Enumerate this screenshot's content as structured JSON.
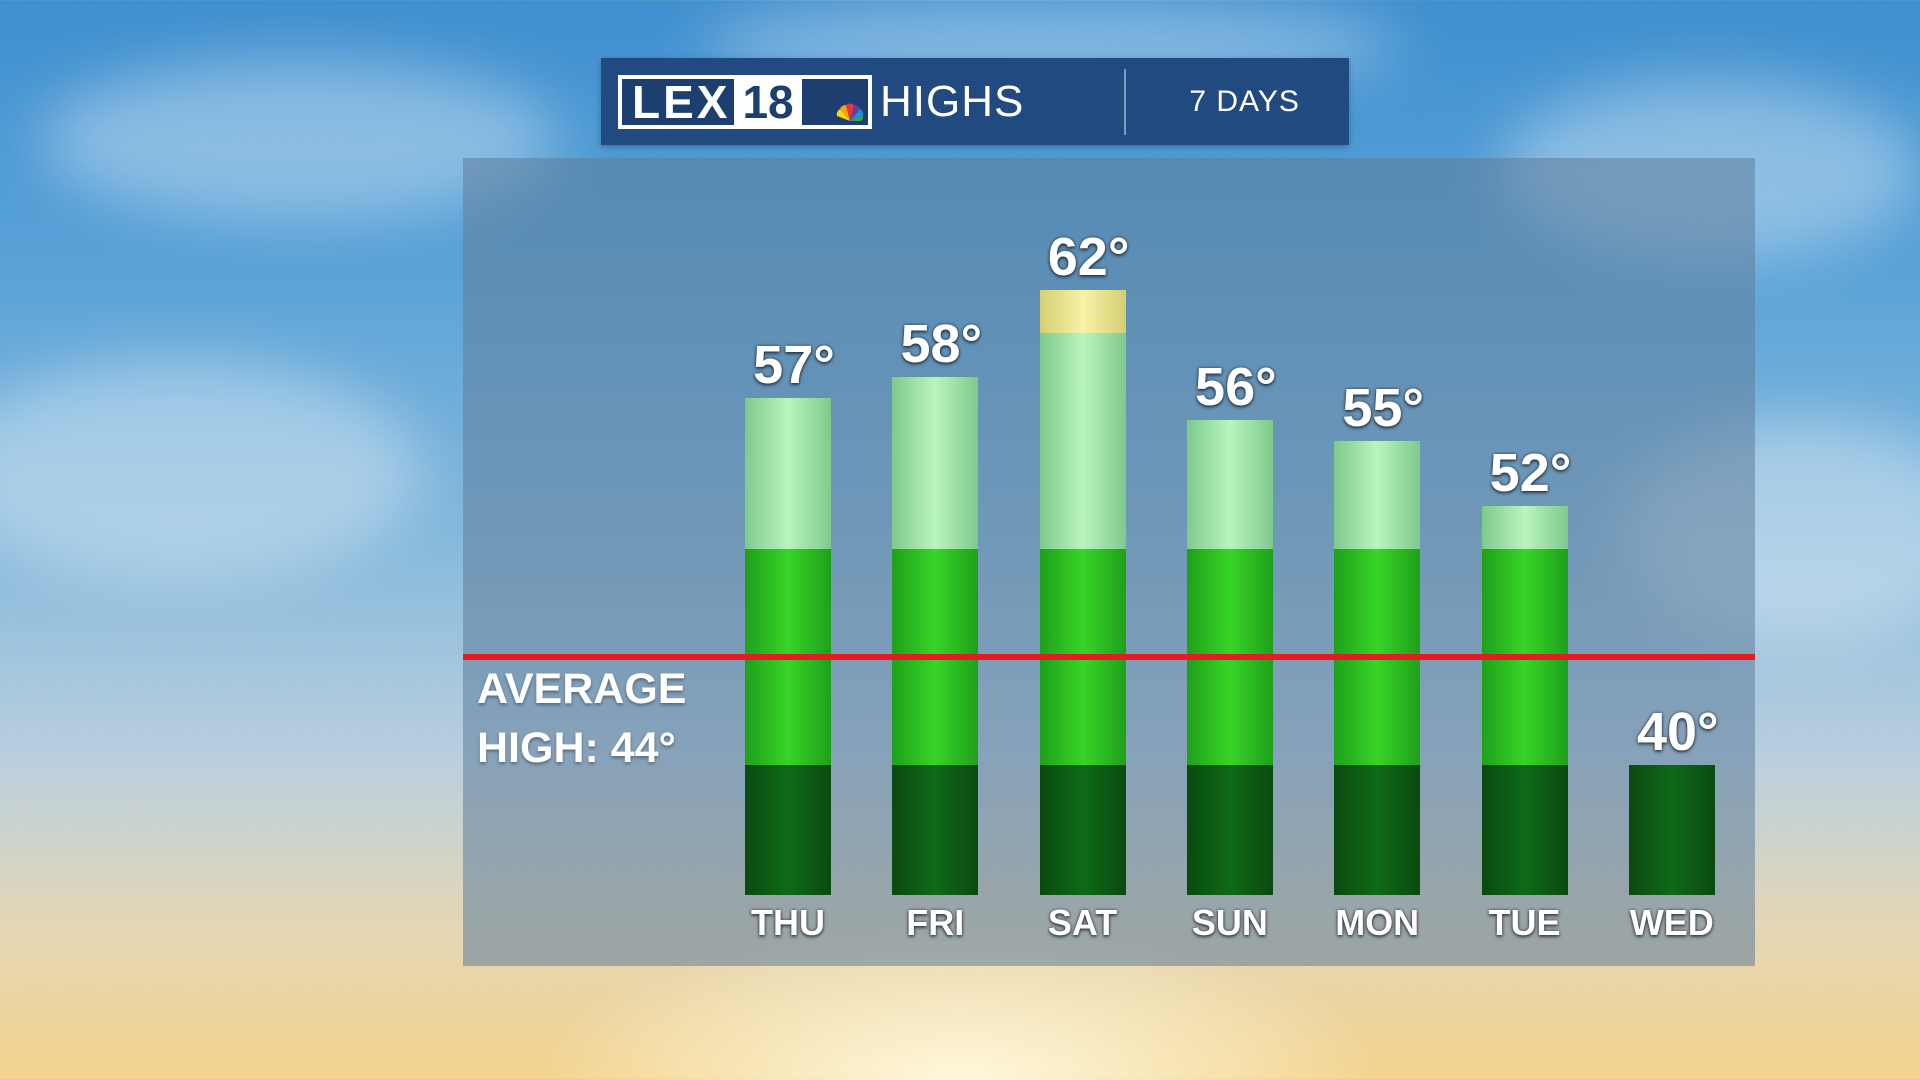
{
  "header": {
    "logo_text": "LEX",
    "logo_number": "18",
    "title": "HIGHS",
    "period": "7 DAYS"
  },
  "average": {
    "line1": "AVERAGE",
    "line2": "HIGH: 44°",
    "value": 44,
    "color": "#e31b23"
  },
  "chart_data": {
    "type": "bar",
    "categories": [
      "THU",
      "FRI",
      "SAT",
      "SUN",
      "MON",
      "TUE",
      "WED"
    ],
    "values": [
      57,
      58,
      62,
      56,
      55,
      52,
      40
    ],
    "labels": [
      "57°",
      "58°",
      "62°",
      "56°",
      "55°",
      "52°",
      "40°"
    ],
    "unit": "°",
    "reference_line": 44,
    "color_bands": [
      {
        "from": 30,
        "to": 40,
        "color": "#0f6a17"
      },
      {
        "from": 40,
        "to": 50,
        "color": "#38d428"
      },
      {
        "from": 50,
        "to": 60,
        "color": "#b9f5bd"
      },
      {
        "from": 60,
        "to": 70,
        "color": "#f7f2a6"
      }
    ]
  }
}
